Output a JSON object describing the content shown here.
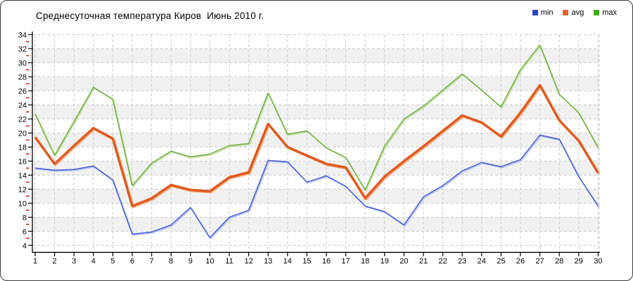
{
  "title": "Среднесуточная температура Киров  Июнь 2010 г.",
  "legend": [
    {
      "label": "min",
      "color": "#2a46cc"
    },
    {
      "label": "avg",
      "color": "#e06428"
    },
    {
      "label": "max",
      "color": "#3fae14"
    }
  ],
  "chart_data": {
    "type": "line",
    "title": "Среднесуточная температура Киров  Июнь 2010 г.",
    "xlabel": "",
    "ylabel": "",
    "categories": [
      1,
      2,
      3,
      4,
      5,
      6,
      7,
      8,
      9,
      10,
      11,
      12,
      13,
      14,
      15,
      16,
      17,
      18,
      19,
      20,
      21,
      22,
      23,
      24,
      25,
      26,
      27,
      28,
      29,
      30
    ],
    "y_ticks": [
      4,
      6,
      8,
      10,
      12,
      14,
      16,
      18,
      20,
      22,
      24,
      26,
      28,
      30,
      32,
      34
    ],
    "ylim": [
      4,
      34
    ],
    "grid": true,
    "legend_position": "top-right",
    "series": [
      {
        "name": "max",
        "color": "#74b244",
        "halo": "#c6e0a8",
        "width": 1.6,
        "values": [
          22.7,
          16.8,
          21.6,
          26.5,
          24.8,
          12.5,
          15.7,
          17.4,
          16.6,
          17.0,
          18.2,
          18.5,
          25.7,
          19.8,
          20.3,
          17.9,
          16.5,
          11.9,
          18.1,
          22.0,
          23.8,
          26.1,
          28.4,
          26.1,
          23.7,
          29.0,
          32.5,
          25.5,
          22.9,
          17.9
        ]
      },
      {
        "name": "min",
        "color": "#4a63d2",
        "halo": "#b6c3ef",
        "width": 1.6,
        "values": [
          15.0,
          14.7,
          14.8,
          15.3,
          13.3,
          5.6,
          5.9,
          6.9,
          9.4,
          5.1,
          8.0,
          9.0,
          16.1,
          15.9,
          13.0,
          13.9,
          12.4,
          9.6,
          8.8,
          6.9,
          10.9,
          12.5,
          14.6,
          15.8,
          15.2,
          16.2,
          19.7,
          19.1,
          13.8,
          9.6
        ]
      },
      {
        "name": "avg",
        "color": "#df5a1f",
        "halo": "#f3ab7e",
        "width": 3.4,
        "values": [
          19.4,
          15.6,
          18.2,
          20.7,
          19.2,
          9.6,
          10.7,
          12.6,
          11.9,
          11.7,
          13.7,
          14.4,
          21.3,
          18.0,
          16.8,
          15.6,
          15.1,
          10.7,
          13.8,
          16.0,
          18.1,
          20.3,
          22.5,
          21.5,
          19.5,
          22.9,
          26.8,
          21.8,
          18.9,
          14.3
        ]
      }
    ],
    "band_color": "#f1f1f1",
    "grid_color": "#cccccc",
    "axis_color": "#000000",
    "minor_tick_color": "#cc1111",
    "tick_label_color": "#000000"
  }
}
